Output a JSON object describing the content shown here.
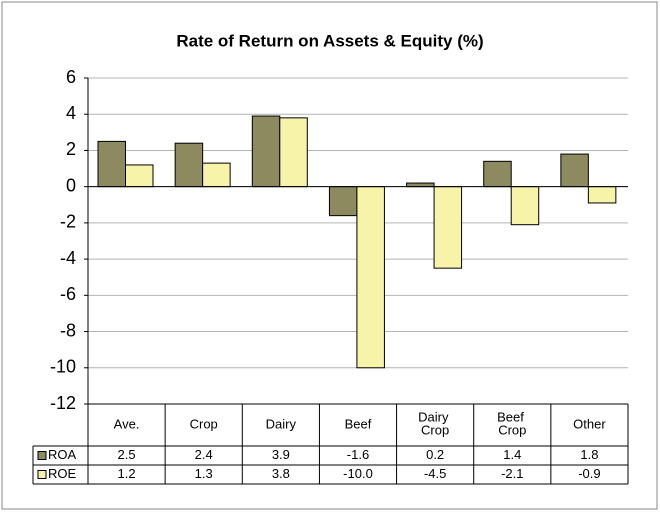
{
  "chart_data": {
    "type": "bar",
    "title": "Rate of Return on Assets & Equity (%)",
    "categories": [
      "Ave.",
      "Crop",
      "Dairy",
      "Beef",
      "Dairy Crop",
      "Beef Crop",
      "Other"
    ],
    "series": [
      {
        "name": "ROA",
        "color": "#8c8a5e",
        "values": [
          2.5,
          2.4,
          3.9,
          -1.6,
          0.2,
          1.4,
          1.8
        ],
        "value_labels": [
          "2.5",
          "2.4",
          "3.9",
          "-1.6",
          "0.2",
          "1.4",
          "1.8"
        ]
      },
      {
        "name": "ROE",
        "color": "#f7f3a8",
        "values": [
          1.2,
          1.3,
          3.8,
          -10.0,
          -4.5,
          -2.1,
          -0.9
        ],
        "value_labels": [
          "1.2",
          "1.3",
          "3.8",
          "-10.0",
          "-4.5",
          "-2.1",
          "-0.9"
        ]
      }
    ],
    "ylim": [
      -12,
      6
    ],
    "yticks": [
      -12,
      -10,
      -8,
      -6,
      -4,
      -2,
      0,
      2,
      4,
      6
    ],
    "grid": true
  }
}
